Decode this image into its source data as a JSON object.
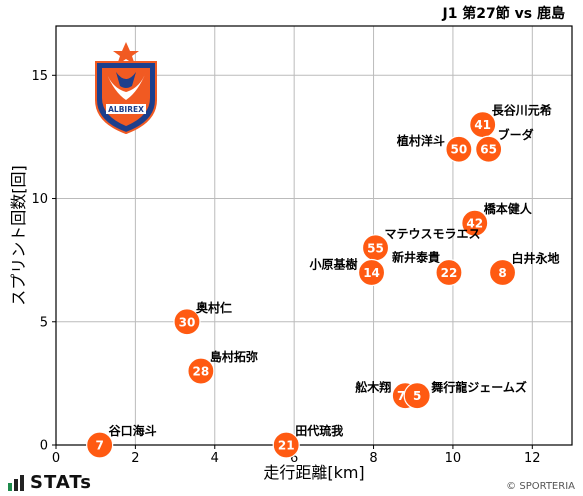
{
  "title": "J1 第27節 vs 鹿島",
  "brand": {
    "name": "STATs",
    "copyright": "© SPORTERIA"
  },
  "logo": {
    "icon": "club-crest-icon",
    "text": "ALBIREX",
    "primary_color": "#f15a22",
    "secondary_color": "#1d3f8c"
  },
  "colors": {
    "marker": "#ff5a12",
    "grid": "#bbbbbb"
  },
  "chart_data": {
    "type": "scatter",
    "xlabel": "走行距離[km]",
    "ylabel": "スプリント回数[回]",
    "xlim": [
      0,
      13
    ],
    "ylim": [
      0,
      17
    ],
    "xticks": [
      0,
      2,
      4,
      6,
      8,
      10,
      12
    ],
    "yticks": [
      0,
      5,
      10,
      15
    ],
    "grid": true,
    "points": [
      {
        "num": "41",
        "name": "長谷川元希",
        "x": 10.75,
        "y": 13,
        "label_pos": "right-up"
      },
      {
        "num": "50",
        "name": "植村洋斗",
        "x": 10.15,
        "y": 12,
        "label_pos": "left"
      },
      {
        "num": "65",
        "name": "ブーダ",
        "x": 10.9,
        "y": 12,
        "label_pos": "right-up"
      },
      {
        "num": "42",
        "name": "橋本健人",
        "x": 10.55,
        "y": 9,
        "label_pos": "right-up"
      },
      {
        "num": "55",
        "name": "マテウスモラエス",
        "x": 8.05,
        "y": 8,
        "label_pos": "right-up"
      },
      {
        "num": "14",
        "name": "小原基樹",
        "x": 7.95,
        "y": 7,
        "label_pos": "left"
      },
      {
        "num": "22",
        "name": "新井泰貴",
        "x": 9.9,
        "y": 7,
        "label_pos": "left-up"
      },
      {
        "num": "8",
        "name": "白井永地",
        "x": 11.25,
        "y": 7,
        "label_pos": "right-up"
      },
      {
        "num": "30",
        "name": "奥村仁",
        "x": 3.3,
        "y": 5,
        "label_pos": "right-up"
      },
      {
        "num": "28",
        "name": "島村拓弥",
        "x": 3.65,
        "y": 3,
        "label_pos": "right-up"
      },
      {
        "num": "77",
        "name": "舩木翔",
        "x": 8.8,
        "y": 2,
        "label_pos": "left"
      },
      {
        "num": "5",
        "name": "舞行龍ジェームズ",
        "x": 9.1,
        "y": 2,
        "label_pos": "right"
      },
      {
        "num": "7",
        "name": "谷口海斗",
        "x": 1.1,
        "y": 0,
        "label_pos": "right-up"
      },
      {
        "num": "21",
        "name": "田代琉我",
        "x": 5.8,
        "y": 0,
        "label_pos": "right-up"
      }
    ]
  }
}
